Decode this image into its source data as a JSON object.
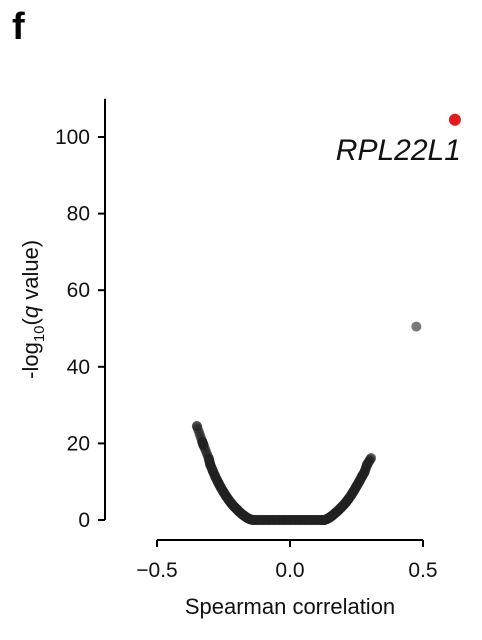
{
  "panel_label": "f",
  "chart_data": {
    "type": "scatter",
    "title": "",
    "xlabel": "Spearman correlation",
    "ylabel_parts": {
      "pre": "-log",
      "sub": "10",
      "open": "(",
      "q": "q",
      "post": " value)"
    },
    "xlim": [
      -0.55,
      0.55
    ],
    "ylim": [
      0,
      110
    ],
    "x_ticks": [
      -0.5,
      0.0,
      0.5
    ],
    "x_tick_labels": [
      "−0.5",
      "0.0",
      "0.5"
    ],
    "y_ticks": [
      0,
      20,
      40,
      60,
      80,
      100
    ],
    "y_tick_labels": [
      "0",
      "20",
      "40",
      "60",
      "80",
      "100"
    ],
    "grid": false,
    "colors": {
      "points": "#222222",
      "highlight": "#e41a1c",
      "axis": "#000000"
    },
    "series": [
      {
        "points": [
          [
            -0.35,
            24.5
          ],
          [
            -0.33,
            20.5
          ],
          [
            -0.325,
            19.5
          ],
          [
            -0.305,
            16
          ],
          [
            -0.3,
            14.5
          ],
          [
            -0.29,
            12.8
          ],
          [
            -0.28,
            11.2
          ],
          [
            -0.27,
            9.8
          ],
          [
            -0.26,
            8.5
          ],
          [
            -0.25,
            7.3
          ],
          [
            -0.24,
            6.2
          ],
          [
            -0.23,
            5.2
          ],
          [
            -0.22,
            4.3
          ],
          [
            -0.21,
            3.5
          ],
          [
            -0.2,
            2.8
          ],
          [
            -0.19,
            2.1
          ],
          [
            -0.18,
            1.5
          ],
          [
            -0.17,
            1.0
          ],
          [
            -0.16,
            0.5
          ],
          [
            -0.15,
            0.2
          ],
          [
            -0.14,
            0.0
          ],
          [
            -0.12,
            0.0
          ],
          [
            -0.1,
            0.0
          ],
          [
            -0.08,
            0.0
          ],
          [
            -0.06,
            0.0
          ],
          [
            -0.04,
            0.0
          ],
          [
            -0.02,
            0.0
          ],
          [
            0.0,
            0.0
          ],
          [
            0.02,
            0.0
          ],
          [
            0.04,
            0.0
          ],
          [
            0.06,
            0.0
          ],
          [
            0.08,
            0.0
          ],
          [
            0.1,
            0.0
          ],
          [
            0.12,
            0.0
          ],
          [
            0.13,
            0.0
          ],
          [
            0.14,
            0.3
          ],
          [
            0.15,
            0.7
          ],
          [
            0.16,
            1.2
          ],
          [
            0.17,
            1.8
          ],
          [
            0.18,
            2.4
          ],
          [
            0.19,
            3.1
          ],
          [
            0.2,
            3.8
          ],
          [
            0.21,
            4.6
          ],
          [
            0.22,
            5.5
          ],
          [
            0.23,
            6.5
          ],
          [
            0.24,
            7.6
          ],
          [
            0.25,
            8.8
          ],
          [
            0.26,
            10.0
          ],
          [
            0.27,
            11.3
          ],
          [
            0.28,
            12.5
          ],
          [
            0.29,
            14.5
          ],
          [
            0.305,
            16.2
          ],
          [
            0.475,
            50.5
          ]
        ]
      }
    ],
    "highlight": {
      "x": 0.62,
      "y": 104.5,
      "label": "RPL22L1"
    }
  }
}
